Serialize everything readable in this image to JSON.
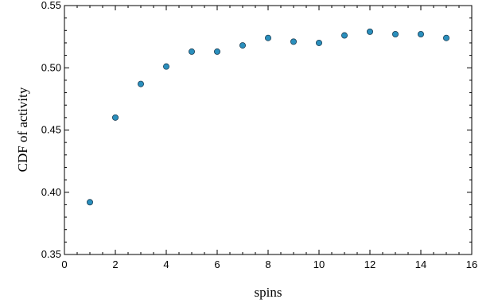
{
  "chart_data": {
    "type": "scatter",
    "xlabel": "spins",
    "ylabel": "CDF of activity",
    "xlim": [
      0,
      16
    ],
    "ylim": [
      0.35,
      0.55
    ],
    "x_ticks": [
      "0",
      "2",
      "4",
      "6",
      "8",
      "10",
      "12",
      "14",
      "16"
    ],
    "y_ticks": [
      "0.35",
      "0.40",
      "0.45",
      "0.50",
      "0.55"
    ],
    "grid": false,
    "series": [
      {
        "color": "#2a8fbd",
        "points": [
          {
            "x": 1,
            "y": 0.392
          },
          {
            "x": 2,
            "y": 0.46
          },
          {
            "x": 3,
            "y": 0.487
          },
          {
            "x": 4,
            "y": 0.501
          },
          {
            "x": 5,
            "y": 0.513
          },
          {
            "x": 6,
            "y": 0.513
          },
          {
            "x": 7,
            "y": 0.518
          },
          {
            "x": 8,
            "y": 0.524
          },
          {
            "x": 9,
            "y": 0.521
          },
          {
            "x": 10,
            "y": 0.52
          },
          {
            "x": 11,
            "y": 0.526
          },
          {
            "x": 12,
            "y": 0.529
          },
          {
            "x": 13,
            "y": 0.527
          },
          {
            "x": 14,
            "y": 0.527
          },
          {
            "x": 15,
            "y": 0.524
          }
        ]
      }
    ]
  }
}
